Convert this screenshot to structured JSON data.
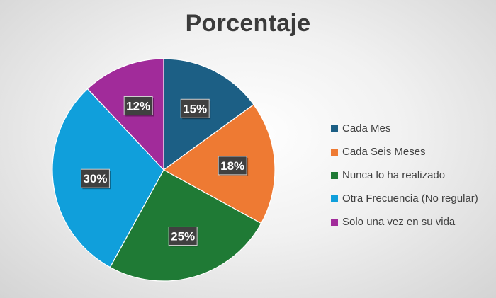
{
  "chart_data": {
    "type": "pie",
    "title": "Porcentaje",
    "categories": [
      "Cada Mes",
      "Cada Seis Meses",
      "Nunca lo ha realizado",
      "Otra Frecuencia (No regular)",
      "Solo una vez en su vida"
    ],
    "values": [
      15,
      18,
      25,
      30,
      12
    ],
    "data_labels": [
      "15%",
      "18%",
      "25%",
      "30%",
      "12%"
    ],
    "colors": [
      "#1c5f85",
      "#ee7a33",
      "#1f7a35",
      "#109fdb",
      "#a12b9a"
    ],
    "legend_position": "right"
  }
}
